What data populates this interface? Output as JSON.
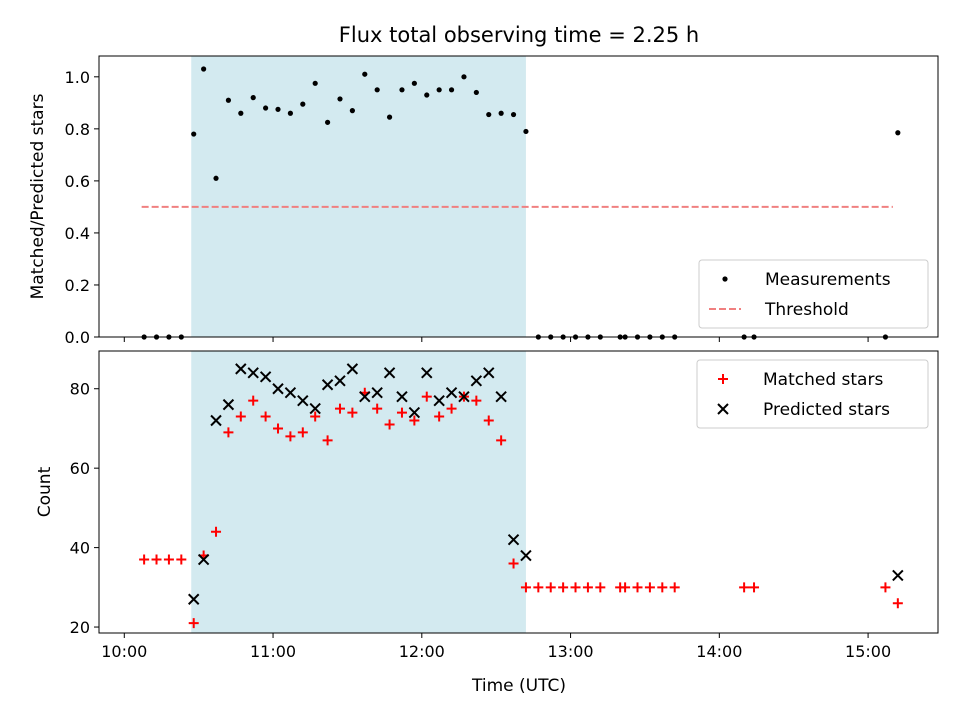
{
  "chart_data": {
    "title": "Flux total observing time = 2.25 h",
    "xlabel": "Time (UTC)",
    "x_tick_labels": [
      "10:00",
      "11:00",
      "12:00",
      "13:00",
      "14:00",
      "15:00"
    ],
    "xlim_hours": [
      9.83,
      15.47
    ],
    "observing_window": {
      "start": "10:27",
      "end": "12:42",
      "color": "#d3eaf0"
    },
    "panels": [
      {
        "type": "scatter",
        "ylabel": "Matched/Predicted stars",
        "ylim": [
          0.0,
          1.08
        ],
        "y_ticks": [
          0.0,
          0.2,
          0.4,
          0.6,
          0.8,
          1.0
        ],
        "y_tick_labels": [
          "0.0",
          "0.2",
          "0.4",
          "0.6",
          "0.8",
          "1.0"
        ],
        "legend_position": "lower-right",
        "series": [
          {
            "name": "Measurements",
            "marker": "dot",
            "color": "#000000",
            "points": [
              [
                "10:08",
                0.0
              ],
              [
                "10:13",
                0.0
              ],
              [
                "10:18",
                0.0
              ],
              [
                "10:23",
                0.0
              ],
              [
                "10:28",
                0.78
              ],
              [
                "10:32",
                1.03
              ],
              [
                "10:37",
                0.61
              ],
              [
                "10:42",
                0.91
              ],
              [
                "10:47",
                0.86
              ],
              [
                "10:52",
                0.92
              ],
              [
                "10:57",
                0.88
              ],
              [
                "11:02",
                0.875
              ],
              [
                "11:07",
                0.86
              ],
              [
                "11:12",
                0.895
              ],
              [
                "11:17",
                0.975
              ],
              [
                "11:22",
                0.825
              ],
              [
                "11:27",
                0.915
              ],
              [
                "11:32",
                0.87
              ],
              [
                "11:37",
                1.01
              ],
              [
                "11:42",
                0.95
              ],
              [
                "11:47",
                0.845
              ],
              [
                "11:52",
                0.95
              ],
              [
                "11:57",
                0.975
              ],
              [
                "12:02",
                0.93
              ],
              [
                "12:07",
                0.95
              ],
              [
                "12:12",
                0.95
              ],
              [
                "12:17",
                1.0
              ],
              [
                "12:22",
                0.94
              ],
              [
                "12:27",
                0.855
              ],
              [
                "12:32",
                0.86
              ],
              [
                "12:37",
                0.855
              ],
              [
                "12:42",
                0.79
              ],
              [
                "12:47",
                0.0
              ],
              [
                "12:52",
                0.0
              ],
              [
                "12:57",
                0.0
              ],
              [
                "13:02",
                0.0
              ],
              [
                "13:07",
                0.0
              ],
              [
                "13:12",
                0.0
              ],
              [
                "13:20",
                0.0
              ],
              [
                "13:22",
                0.0
              ],
              [
                "13:27",
                0.0
              ],
              [
                "13:32",
                0.0
              ],
              [
                "13:37",
                0.0
              ],
              [
                "13:42",
                0.0
              ],
              [
                "14:10",
                0.0
              ],
              [
                "14:14",
                0.0
              ],
              [
                "15:07",
                0.0
              ],
              [
                "15:12",
                0.785
              ]
            ]
          },
          {
            "name": "Threshold",
            "type": "line",
            "style": "dashed",
            "color": "#f08080",
            "points": [
              [
                "10:07",
                0.5
              ],
              [
                "15:10",
                0.5
              ]
            ]
          }
        ]
      },
      {
        "type": "scatter",
        "ylabel": "Count",
        "ylim": [
          18.5,
          89.5
        ],
        "y_ticks": [
          20,
          40,
          60,
          80
        ],
        "y_tick_labels": [
          "20",
          "40",
          "60",
          "80"
        ],
        "legend_position": "top-right",
        "series": [
          {
            "name": "Matched stars",
            "marker": "plus",
            "color": "#ff0000",
            "points": [
              [
                "10:08",
                37
              ],
              [
                "10:13",
                37
              ],
              [
                "10:18",
                37
              ],
              [
                "10:23",
                37
              ],
              [
                "10:28",
                21
              ],
              [
                "10:32",
                38
              ],
              [
                "10:37",
                44
              ],
              [
                "10:42",
                69
              ],
              [
                "10:47",
                73
              ],
              [
                "10:52",
                77
              ],
              [
                "10:57",
                73
              ],
              [
                "11:02",
                70
              ],
              [
                "11:07",
                68
              ],
              [
                "11:12",
                69
              ],
              [
                "11:17",
                73
              ],
              [
                "11:22",
                67
              ],
              [
                "11:27",
                75
              ],
              [
                "11:32",
                74
              ],
              [
                "11:37",
                79
              ],
              [
                "11:42",
                75
              ],
              [
                "11:47",
                71
              ],
              [
                "11:52",
                74
              ],
              [
                "11:57",
                72
              ],
              [
                "12:02",
                78
              ],
              [
                "12:07",
                73
              ],
              [
                "12:12",
                75
              ],
              [
                "12:17",
                78
              ],
              [
                "12:22",
                77
              ],
              [
                "12:27",
                72
              ],
              [
                "12:32",
                67
              ],
              [
                "12:37",
                36
              ],
              [
                "12:42",
                30
              ],
              [
                "12:47",
                30
              ],
              [
                "12:52",
                30
              ],
              [
                "12:57",
                30
              ],
              [
                "13:02",
                30
              ],
              [
                "13:07",
                30
              ],
              [
                "13:12",
                30
              ],
              [
                "13:20",
                30
              ],
              [
                "13:22",
                30
              ],
              [
                "13:27",
                30
              ],
              [
                "13:32",
                30
              ],
              [
                "13:37",
                30
              ],
              [
                "13:42",
                30
              ],
              [
                "14:10",
                30
              ],
              [
                "14:14",
                30
              ],
              [
                "15:07",
                30
              ],
              [
                "15:12",
                26
              ]
            ]
          },
          {
            "name": "Predicted stars",
            "marker": "x",
            "color": "#000000",
            "points": [
              [
                "10:28",
                27
              ],
              [
                "10:32",
                37
              ],
              [
                "10:37",
                72
              ],
              [
                "10:42",
                76
              ],
              [
                "10:47",
                85
              ],
              [
                "10:52",
                84
              ],
              [
                "10:57",
                83
              ],
              [
                "11:02",
                80
              ],
              [
                "11:07",
                79
              ],
              [
                "11:12",
                77
              ],
              [
                "11:17",
                75
              ],
              [
                "11:22",
                81
              ],
              [
                "11:27",
                82
              ],
              [
                "11:32",
                85
              ],
              [
                "11:37",
                78
              ],
              [
                "11:42",
                79
              ],
              [
                "11:47",
                84
              ],
              [
                "11:52",
                78
              ],
              [
                "11:57",
                74
              ],
              [
                "12:02",
                84
              ],
              [
                "12:07",
                77
              ],
              [
                "12:12",
                79
              ],
              [
                "12:17",
                78
              ],
              [
                "12:22",
                82
              ],
              [
                "12:27",
                84
              ],
              [
                "12:32",
                78
              ],
              [
                "12:37",
                42
              ],
              [
                "12:42",
                38
              ],
              [
                "15:12",
                33
              ]
            ]
          }
        ]
      }
    ]
  }
}
